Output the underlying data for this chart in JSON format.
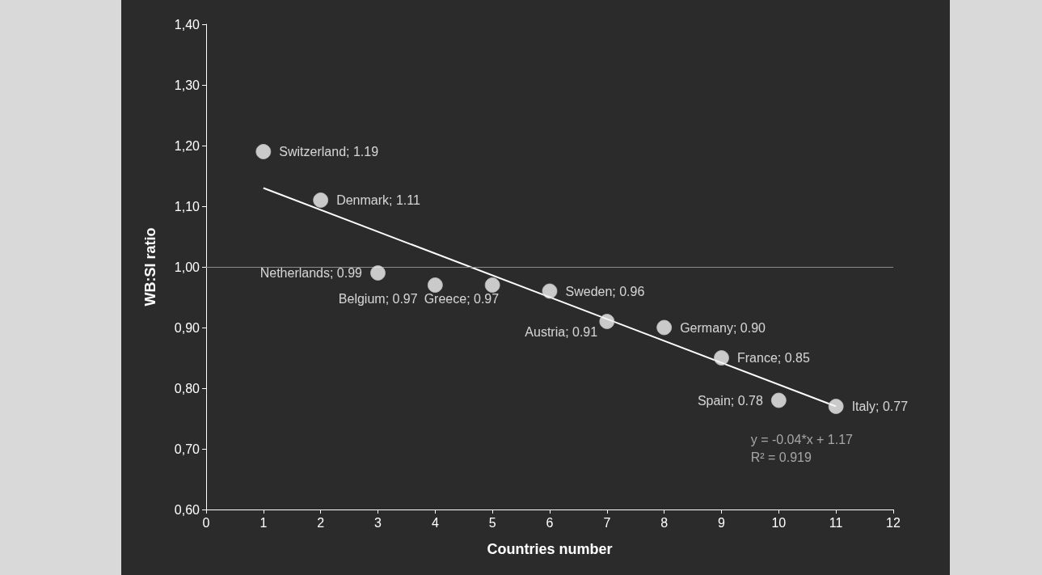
{
  "chart_data": {
    "type": "scatter",
    "xlabel": "Countries number",
    "ylabel": "WB:SI ratio",
    "x": [
      1,
      2,
      3,
      4,
      5,
      6,
      7,
      8,
      9,
      10,
      11
    ],
    "series": [
      {
        "color": "#f2f2f2",
        "marker": "circle",
        "values": [
          1.19,
          1.11,
          0.99,
          0.97,
          0.97,
          0.96,
          0.91,
          0.9,
          0.85,
          0.78,
          0.77
        ],
        "value_labels": [
          "Switzerland; 1.19",
          "Denmark; 1.11",
          "Netherlands; 0.99",
          "Belgium; 0.97",
          "Greece; 0.97",
          "Sweden; 0.96",
          "Austria; 0.91",
          "Germany; 0.90",
          "France; 0.85",
          "Spain; 0.78",
          "Italy; 0.77"
        ]
      },
      {
        "type": "line",
        "color": "#ffffff",
        "marker": "none",
        "line_style": "solid",
        "x": [
          1,
          11
        ],
        "values": [
          1.13,
          0.77
        ]
      }
    ],
    "xlim": [
      0,
      12
    ],
    "xticks": [
      0,
      1,
      2,
      3,
      4,
      5,
      6,
      7,
      8,
      9,
      10,
      11,
      12
    ],
    "ylim": [
      0.6,
      1.4
    ],
    "yticks": [
      {
        "value": 0.6,
        "label": "0,60"
      },
      {
        "value": 0.7,
        "label": "0,70"
      },
      {
        "value": 0.8,
        "label": "0,80"
      },
      {
        "value": 0.9,
        "label": "0,90"
      },
      {
        "value": 1.0,
        "label": "1,00"
      },
      {
        "value": 1.1,
        "label": "1,10"
      },
      {
        "value": 1.2,
        "label": "1,20"
      },
      {
        "value": 1.3,
        "label": "1,30"
      },
      {
        "value": 1.4,
        "label": "1,40"
      }
    ],
    "ref_lines": [
      {
        "axis": "y",
        "value": 1.0,
        "color": "#8c8c8c"
      }
    ],
    "annotations": [
      "y = -0.04*x + 1.17",
      "R² = 0.919"
    ],
    "grid": false
  }
}
